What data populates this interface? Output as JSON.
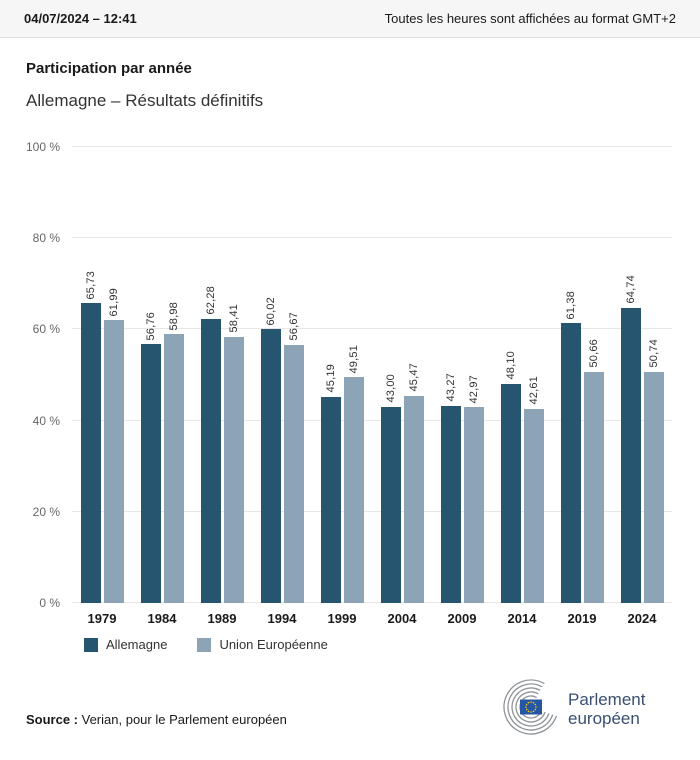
{
  "header": {
    "datetime": "04/07/2024 – 12:41",
    "timezone_note": "Toutes les heures sont affichées au format GMT+2"
  },
  "title": "Participation par année",
  "subtitle": "Allemagne – Résultats définitifs",
  "chart_data": {
    "type": "bar",
    "title": "Participation par année",
    "subtitle": "Allemagne – Résultats définitifs",
    "categories": [
      "1979",
      "1984",
      "1989",
      "1994",
      "1999",
      "2004",
      "2009",
      "2014",
      "2019",
      "2024"
    ],
    "series": [
      {
        "name": "Allemagne",
        "color": "#26556f",
        "values": [
          65.73,
          56.76,
          62.28,
          60.02,
          45.19,
          43.0,
          43.27,
          48.1,
          61.38,
          64.74
        ],
        "labels": [
          "65,73",
          "56,76",
          "62,28",
          "60,02",
          "45,19",
          "43,00",
          "43,27",
          "48,10",
          "61,38",
          "64,74"
        ]
      },
      {
        "name": "Union Européenne",
        "color": "#8ca4b5",
        "values": [
          61.99,
          58.98,
          58.41,
          56.67,
          49.51,
          45.47,
          42.97,
          42.61,
          50.66,
          50.74
        ],
        "labels": [
          "61,99",
          "58,98",
          "58,41",
          "56,67",
          "49,51",
          "45,47",
          "42,97",
          "42,61",
          "50,66",
          "50,74"
        ]
      }
    ],
    "xlabel": "",
    "ylabel": "",
    "ylim": [
      0,
      100
    ],
    "ytick_values": [
      0,
      20,
      40,
      60,
      80,
      100
    ],
    "ytick_labels": [
      "0 %",
      "20 %",
      "40 %",
      "60 %",
      "80 %",
      "100 %"
    ],
    "grid": true,
    "legend_position": "bottom-left"
  },
  "footer": {
    "source_label": "Source :",
    "source_text": " Verian, pour le Parlement européen",
    "logo_line1": "Parlement",
    "logo_line2": "européen"
  }
}
